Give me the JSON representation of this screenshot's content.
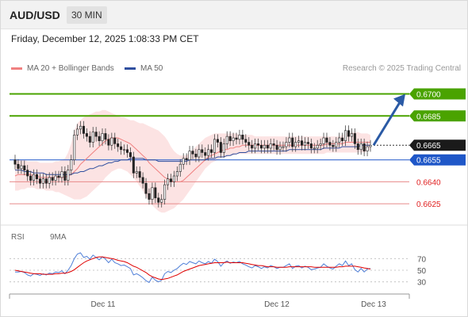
{
  "header": {
    "symbol": "AUD/USD",
    "timeframe": "30 MIN"
  },
  "datetime": "Friday, December 12, 2025 1:08:33 PM CET",
  "legend": {
    "ma20": {
      "label": "MA 20 + Bollinger Bands",
      "color": "#f08080"
    },
    "ma50": {
      "label": "MA 50",
      "color": "#2f4f9f"
    },
    "copyright": "Research © 2025 Trading Central"
  },
  "rsi_legend": {
    "rsi": {
      "label": "RSI",
      "color": "#4f7fd8"
    },
    "ma9": {
      "label": "9MA",
      "color": "#e00000"
    }
  },
  "chart_data": {
    "type": "line",
    "title": "AUD/USD",
    "timeframe": "30 MIN",
    "x_ticks": [
      "Dec 11",
      "Dec 12",
      "Dec 13"
    ],
    "price_levels": [
      {
        "label": "0.6700",
        "value": 0.67,
        "kind": "target",
        "color": "#4aa300"
      },
      {
        "label": "0.6685",
        "value": 0.6685,
        "kind": "resistance",
        "color": "#4aa300"
      },
      {
        "label": "0.6665",
        "value": 0.6665,
        "kind": "last",
        "color": "#222222"
      },
      {
        "label": "0.6655",
        "value": 0.6655,
        "kind": "pivot",
        "color": "#1f57c8"
      },
      {
        "label": "0.6640",
        "value": 0.664,
        "kind": "support",
        "color": "#e02020"
      },
      {
        "label": "0.6625",
        "value": 0.6625,
        "kind": "support",
        "color": "#e02020"
      }
    ],
    "ylim": [
      0.66175,
      0.67095
    ],
    "close": [
      0.6652,
      0.6649,
      0.6651,
      0.6648,
      0.6644,
      0.6641,
      0.6645,
      0.6642,
      0.6639,
      0.6642,
      0.6639,
      0.6643,
      0.6641,
      0.6644,
      0.6643,
      0.6647,
      0.6641,
      0.6648,
      0.6655,
      0.6672,
      0.6676,
      0.6678,
      0.6673,
      0.6671,
      0.6667,
      0.6674,
      0.6671,
      0.6668,
      0.6673,
      0.6669,
      0.6665,
      0.667,
      0.6666,
      0.6664,
      0.6662,
      0.6662,
      0.666,
      0.6657,
      0.6646,
      0.6647,
      0.6643,
      0.6639,
      0.6632,
      0.6628,
      0.6636,
      0.6629,
      0.6626,
      0.6628,
      0.6638,
      0.6642,
      0.664,
      0.6644,
      0.6647,
      0.6652,
      0.6656,
      0.6655,
      0.6661,
      0.6659,
      0.6657,
      0.6662,
      0.666,
      0.6658,
      0.6662,
      0.666,
      0.6669,
      0.6667,
      0.666,
      0.6666,
      0.6671,
      0.6668,
      0.667,
      0.6669,
      0.6672,
      0.6669,
      0.6667,
      0.6665,
      0.6663,
      0.6666,
      0.6665,
      0.6663,
      0.6665,
      0.6663,
      0.6666,
      0.6665,
      0.6662,
      0.6664,
      0.6664,
      0.6667,
      0.667,
      0.6664,
      0.6667,
      0.6668,
      0.6665,
      0.6667,
      0.6666,
      0.6663,
      0.6663,
      0.6665,
      0.6666,
      0.667,
      0.6667,
      0.6665,
      0.6664,
      0.6667,
      0.667,
      0.6668,
      0.6675,
      0.6671,
      0.6673,
      0.6666,
      0.6662,
      0.6666,
      0.6661,
      0.6664,
      0.6665
    ],
    "ma20": [
      0.6644,
      0.6645,
      0.6645,
      0.6645,
      0.6645,
      0.6645,
      0.6644,
      0.6644,
      0.6643,
      0.6643,
      0.6643,
      0.6643,
      0.6643,
      0.6643,
      0.6643,
      0.6643,
      0.6643,
      0.6644,
      0.6645,
      0.6647,
      0.6649,
      0.6652,
      0.6654,
      0.6656,
      0.6658,
      0.666,
      0.6662,
      0.6664,
      0.6666,
      0.6668,
      0.6669,
      0.667,
      0.667,
      0.667,
      0.6669,
      0.6668,
      0.6667,
      0.6666,
      0.6664,
      0.6662,
      0.666,
      0.6658,
      0.6656,
      0.6653,
      0.6651,
      0.6649,
      0.6647,
      0.6645,
      0.6643,
      0.6642,
      0.6641,
      0.664,
      0.664,
      0.664,
      0.6641,
      0.6643,
      0.6645,
      0.6647,
      0.6649,
      0.6651,
      0.6653,
      0.6655,
      0.6657,
      0.6658,
      0.6659,
      0.666,
      0.6661,
      0.6662,
      0.6662,
      0.6663,
      0.6663,
      0.6664,
      0.6664,
      0.6665,
      0.6665,
      0.6665,
      0.6665,
      0.6665,
      0.6665,
      0.6665,
      0.6665,
      0.6665,
      0.6665,
      0.6665,
      0.6665,
      0.6665,
      0.6665,
      0.6665,
      0.6665,
      0.6665,
      0.6665,
      0.6665,
      0.6665,
      0.6665,
      0.6665,
      0.6665,
      0.6665,
      0.6665,
      0.6665,
      0.6665,
      0.6666,
      0.6666,
      0.6666,
      0.6666,
      0.6666,
      0.6666,
      0.6667,
      0.6667,
      0.6667,
      0.6667,
      0.6667,
      0.6667,
      0.6667,
      0.6667,
      0.6667
    ],
    "ma50": [
      0.6648,
      0.6648,
      0.6648,
      0.6647,
      0.6647,
      0.6647,
      0.6646,
      0.6646,
      0.6646,
      0.6646,
      0.6645,
      0.6645,
      0.6645,
      0.6645,
      0.6645,
      0.6645,
      0.6645,
      0.6645,
      0.6645,
      0.6646,
      0.6646,
      0.6647,
      0.6647,
      0.6648,
      0.6649,
      0.6649,
      0.665,
      0.6651,
      0.6651,
      0.6652,
      0.6653,
      0.6653,
      0.6654,
      0.6654,
      0.6655,
      0.6655,
      0.6655,
      0.6656,
      0.6656,
      0.6656,
      0.6656,
      0.6656,
      0.6655,
      0.6655,
      0.6655,
      0.6655,
      0.6654,
      0.6654,
      0.6654,
      0.6654,
      0.6654,
      0.6654,
      0.6654,
      0.6654,
      0.6654,
      0.6654,
      0.6655,
      0.6655,
      0.6655,
      0.6655,
      0.6655,
      0.6655,
      0.6656,
      0.6656,
      0.6656,
      0.6657,
      0.6657,
      0.6657,
      0.6658,
      0.6658,
      0.6659,
      0.6659,
      0.666,
      0.666,
      0.666,
      0.6661,
      0.6661,
      0.6661,
      0.6661,
      0.6661,
      0.6661,
      0.6661,
      0.6661,
      0.6661,
      0.6661,
      0.6661,
      0.6661,
      0.6661,
      0.6662,
      0.6662,
      0.6662,
      0.6662,
      0.6662,
      0.6662,
      0.6662,
      0.6662,
      0.6662,
      0.6662,
      0.6662,
      0.6663,
      0.6663,
      0.6663,
      0.6663,
      0.6663,
      0.6663,
      0.6664,
      0.6664,
      0.6664,
      0.6664,
      0.6664,
      0.6664,
      0.6665,
      0.6665,
      0.6665,
      0.6665
    ],
    "bb_upper": [
      0.6655,
      0.6655,
      0.6655,
      0.6655,
      0.6654,
      0.6654,
      0.6654,
      0.6654,
      0.6653,
      0.6653,
      0.6653,
      0.6653,
      0.6653,
      0.6654,
      0.6654,
      0.6655,
      0.6656,
      0.666,
      0.6666,
      0.6675,
      0.668,
      0.6682,
      0.6684,
      0.6685,
      0.6686,
      0.6687,
      0.6688,
      0.6688,
      0.6689,
      0.6689,
      0.6688,
      0.6687,
      0.6686,
      0.6685,
      0.6684,
      0.6684,
      0.6683,
      0.6682,
      0.6682,
      0.6681,
      0.668,
      0.668,
      0.6679,
      0.6678,
      0.6677,
      0.6676,
      0.6675,
      0.6673,
      0.6671,
      0.6668,
      0.6664,
      0.6661,
      0.6659,
      0.6658,
      0.6658,
      0.6658,
      0.666,
      0.6662,
      0.6664,
      0.6666,
      0.6668,
      0.667,
      0.6671,
      0.6672,
      0.6673,
      0.6673,
      0.6673,
      0.6673,
      0.6673,
      0.6673,
      0.6673,
      0.6673,
      0.6672,
      0.6672,
      0.6672,
      0.6672,
      0.6672,
      0.6671,
      0.6671,
      0.6671,
      0.6671,
      0.6671,
      0.6671,
      0.6671,
      0.6671,
      0.6671,
      0.6671,
      0.6671,
      0.6671,
      0.6671,
      0.6671,
      0.6671,
      0.6671,
      0.6671,
      0.6671,
      0.6671,
      0.6671,
      0.6671,
      0.6671,
      0.6671,
      0.6671,
      0.6671,
      0.6671,
      0.6671,
      0.6671,
      0.6672,
      0.6673,
      0.6674,
      0.6674,
      0.6674,
      0.6674,
      0.6673,
      0.6673,
      0.6673,
      0.6672
    ],
    "bb_lower": [
      0.6634,
      0.6634,
      0.6635,
      0.6635,
      0.6636,
      0.6636,
      0.6636,
      0.6635,
      0.6635,
      0.6635,
      0.6634,
      0.6634,
      0.6634,
      0.6633,
      0.6633,
      0.6632,
      0.6631,
      0.663,
      0.6629,
      0.6628,
      0.6628,
      0.6628,
      0.6629,
      0.663,
      0.6632,
      0.6634,
      0.6636,
      0.6638,
      0.664,
      0.6643,
      0.6645,
      0.6647,
      0.6648,
      0.6649,
      0.6649,
      0.6648,
      0.6647,
      0.6645,
      0.6643,
      0.664,
      0.6637,
      0.6634,
      0.663,
      0.6627,
      0.6624,
      0.6622,
      0.662,
      0.6619,
      0.6619,
      0.662,
      0.6621,
      0.6622,
      0.6624,
      0.6626,
      0.6628,
      0.6631,
      0.6634,
      0.6637,
      0.664,
      0.6643,
      0.6646,
      0.6649,
      0.6651,
      0.6653,
      0.6654,
      0.6655,
      0.6656,
      0.6657,
      0.6657,
      0.6658,
      0.6658,
      0.6659,
      0.6659,
      0.6659,
      0.6659,
      0.6659,
      0.6659,
      0.6659,
      0.6659,
      0.6659,
      0.6659,
      0.6659,
      0.6659,
      0.6659,
      0.6659,
      0.6659,
      0.6659,
      0.6659,
      0.6659,
      0.6659,
      0.6659,
      0.6659,
      0.6659,
      0.6659,
      0.6659,
      0.6659,
      0.6659,
      0.6659,
      0.6659,
      0.6659,
      0.666,
      0.666,
      0.666,
      0.666,
      0.666,
      0.666,
      0.666,
      0.666,
      0.666,
      0.666,
      0.666,
      0.666,
      0.666,
      0.6661,
      0.6662
    ],
    "forecast_arrow": {
      "from": 0.6665,
      "to": 0.67
    },
    "rsi": {
      "ticks": [
        70,
        50,
        30
      ],
      "ylim": [
        20,
        80
      ],
      "rsi_values": [
        47,
        47,
        48,
        46,
        42,
        40,
        44,
        43,
        41,
        44,
        42,
        45,
        44,
        47,
        46,
        49,
        44,
        50,
        58,
        70,
        78,
        80,
        72,
        74,
        69,
        76,
        72,
        68,
        73,
        69,
        63,
        69,
        63,
        61,
        58,
        59,
        56,
        53,
        42,
        44,
        41,
        37,
        32,
        29,
        38,
        33,
        30,
        33,
        44,
        48,
        46,
        50,
        53,
        58,
        62,
        60,
        65,
        63,
        61,
        66,
        63,
        61,
        65,
        62,
        69,
        65,
        57,
        63,
        66,
        62,
        64,
        63,
        65,
        61,
        59,
        56,
        54,
        58,
        56,
        53,
        56,
        54,
        58,
        56,
        53,
        55,
        55,
        58,
        61,
        53,
        57,
        58,
        54,
        57,
        55,
        51,
        52,
        54,
        55,
        61,
        57,
        54,
        52,
        57,
        61,
        58,
        66,
        58,
        61,
        51,
        47,
        53,
        47,
        52,
        53
      ],
      "ma9_values": [
        50,
        49,
        48,
        47,
        46,
        45,
        44,
        44,
        44,
        43,
        43,
        43,
        43,
        44,
        44,
        45,
        45,
        46,
        48,
        51,
        55,
        59,
        63,
        66,
        68,
        70,
        72,
        73,
        73,
        72,
        71,
        70,
        69,
        67,
        66,
        65,
        63,
        60,
        57,
        55,
        52,
        49,
        46,
        42,
        39,
        37,
        35,
        34,
        35,
        36,
        38,
        40,
        42,
        45,
        48,
        50,
        52,
        54,
        56,
        58,
        59,
        60,
        61,
        62,
        63,
        63,
        63,
        63,
        64,
        63,
        63,
        63,
        63,
        63,
        62,
        61,
        60,
        59,
        58,
        58,
        57,
        56,
        56,
        56,
        55,
        55,
        55,
        55,
        56,
        56,
        56,
        56,
        56,
        56,
        56,
        56,
        55,
        55,
        55,
        55,
        55,
        55,
        55,
        55,
        56,
        56,
        57,
        57,
        57,
        57,
        56,
        55,
        54,
        53,
        52
      ]
    }
  }
}
